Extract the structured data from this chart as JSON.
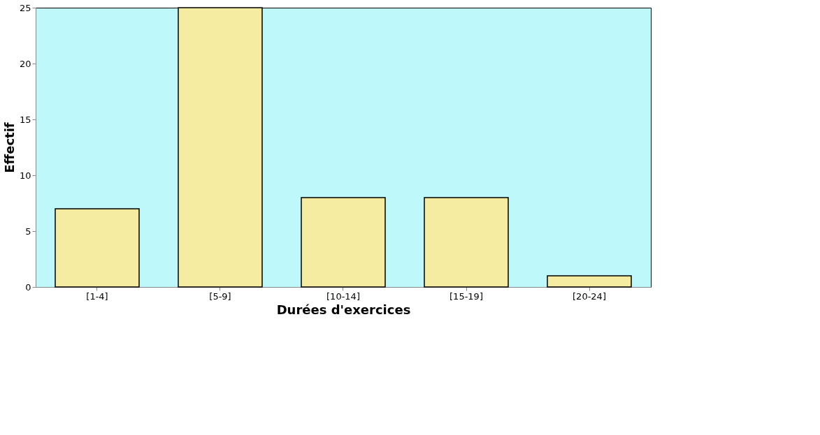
{
  "chart_data": {
    "type": "bar",
    "xlabel": "Durées d'exercices",
    "ylabel": "Effectif",
    "categories": [
      "[1-4]",
      "[5-9]",
      "[10-14]",
      "[15-19]",
      "[20-24]"
    ],
    "values": [
      7,
      25,
      8,
      8,
      1
    ],
    "color": "#f5eca2",
    "ylim": [
      0,
      25
    ],
    "yticks": [
      0,
      5,
      10,
      15,
      20,
      25
    ],
    "grid": false
  }
}
